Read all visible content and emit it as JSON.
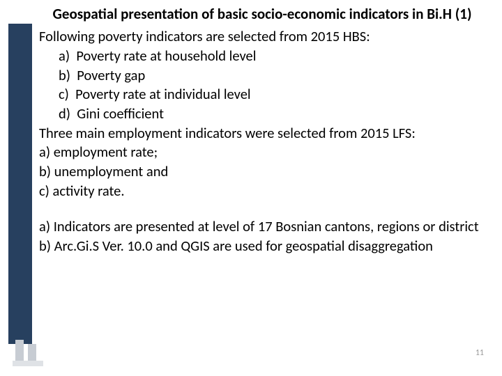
{
  "colors": {
    "sidebar": "#27405f",
    "background": "#ffffff",
    "text": "#000000",
    "page_number": "#9a9a9a",
    "deco_bar": "#c7ccd3",
    "deco_base": "#dfe2e6"
  },
  "typography": {
    "title_fontsize": 21,
    "title_weight": 700,
    "body_fontsize": 20.5,
    "pagenum_fontsize": 12
  },
  "title": "Geospatial presentation of basic socio-economic indicators in Bi.H (1)",
  "intro1": "Following poverty indicators are selected from 2015 HBS:",
  "list1": {
    "a": "Poverty rate at household level",
    "b": "Poverty gap",
    "c": "Poverty rate at individual level",
    "d": "Gini coefficient"
  },
  "intro2": "Three main employment indicators were selected from 2015 LFS:",
  "list2": {
    "a": "employment rate;",
    "b": "unemployment and",
    "c": "activity rate."
  },
  "bottom": {
    "a": "Indicators are presented at level of 17 Bosnian cantons, regions or district",
    "b": "Arc.Gi.S Ver. 10.0 and QGIS are used for geospatial disaggregation"
  },
  "labels": {
    "a": "a)",
    "b": "b)",
    "c": "c)",
    "d": "d)"
  },
  "page_number": "11"
}
